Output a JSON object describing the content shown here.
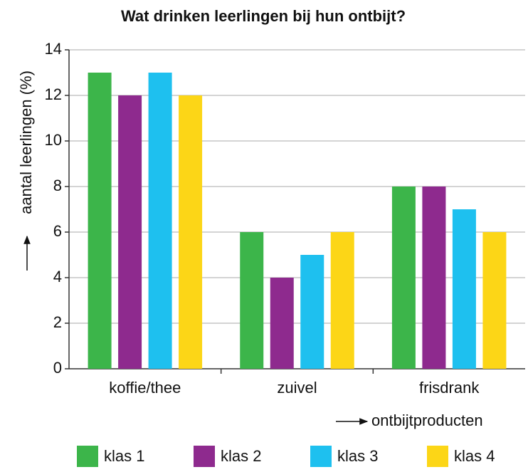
{
  "chart_data": {
    "type": "bar",
    "title": "Wat drinken leerlingen bij hun ontbijt?",
    "y_label": "aantal leerlingen (%)",
    "x_label": "ontbijtproducten",
    "categories": [
      "koffie/thee",
      "zuivel",
      "frisdrank"
    ],
    "series": [
      {
        "name": "klas 1",
        "color": "#3cb54a",
        "values": [
          13,
          6,
          8
        ]
      },
      {
        "name": "klas 2",
        "color": "#8e2a8e",
        "values": [
          12,
          4,
          8
        ]
      },
      {
        "name": "klas 3",
        "color": "#1ec0ef",
        "values": [
          13,
          5,
          7
        ]
      },
      {
        "name": "klas 4",
        "color": "#fcd617",
        "values": [
          12,
          6,
          6
        ]
      }
    ],
    "ylim": [
      0,
      14
    ],
    "yticks": [
      0,
      2,
      4,
      6,
      8,
      10,
      12,
      14
    ],
    "grid": true,
    "legend": "bottom"
  }
}
